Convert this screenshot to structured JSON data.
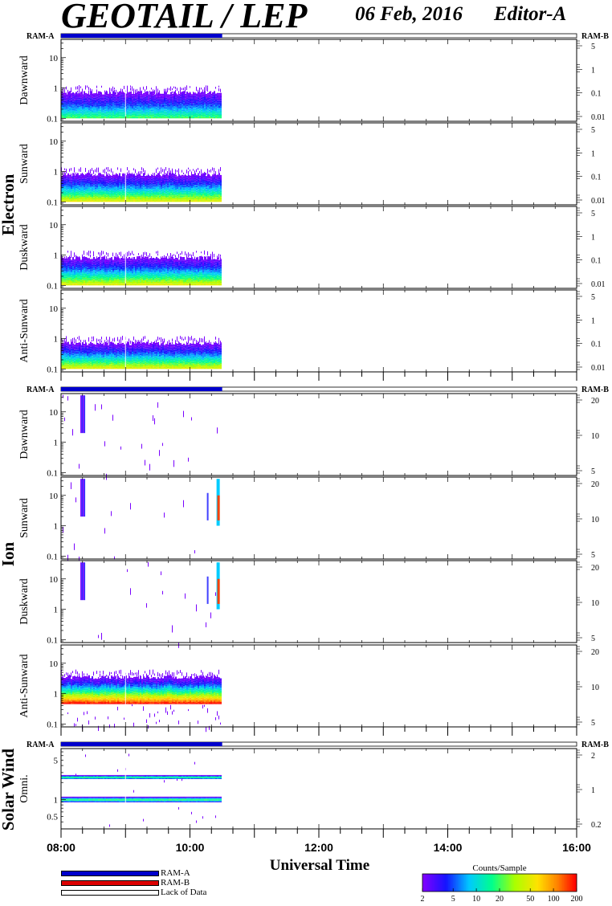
{
  "header": {
    "title": "GEOTAIL / LEP",
    "date": "06 Feb, 2016",
    "editor": "Editor-A"
  },
  "ram_labels": {
    "left": "RAM-A",
    "right": "RAM-B"
  },
  "xaxis": {
    "label": "Universal Time",
    "start_hour": 8,
    "end_hour": 16,
    "tick_labels": [
      "08:00",
      "10:00",
      "12:00",
      "14:00",
      "16:00"
    ],
    "minor_tick_minutes": 20
  },
  "legend": {
    "items": [
      {
        "label": "RAM-A",
        "color": "#0000cc"
      },
      {
        "label": "RAM-B",
        "color": "#dd0000"
      },
      {
        "label": "Lack of Data",
        "color": "#ffffff"
      }
    ]
  },
  "colorbar": {
    "title": "Counts/Sample",
    "tick_labels": [
      "2",
      "5",
      "10",
      "20",
      "50",
      "100",
      "200"
    ],
    "range": [
      2,
      200
    ],
    "scale": "log"
  },
  "data_coverage": {
    "ram_a_end_hour": 10.5,
    "data_end_hour": 10.5
  },
  "chart_data": [
    {
      "type": "heatmap",
      "group": "Electron",
      "panels": [
        {
          "ylabel": "Dawnward",
          "left_ticks": [
            "10",
            "1",
            "0.1"
          ],
          "right_ticks": [
            "5",
            "1",
            "0.1",
            "0.01"
          ],
          "ylim": [
            0.08,
            40
          ],
          "yscale": "log",
          "band": [
            0.1,
            0.7
          ],
          "peak_count": 20
        },
        {
          "ylabel": "Sunward",
          "left_ticks": [
            "10",
            "1",
            "0.1"
          ],
          "right_ticks": [
            "5",
            "1",
            "0.1",
            "0.01"
          ],
          "ylim": [
            0.08,
            40
          ],
          "yscale": "log",
          "band": [
            0.1,
            0.8
          ],
          "peak_count": 50
        },
        {
          "ylabel": "Duskward",
          "left_ticks": [
            "10",
            "1",
            "0.1"
          ],
          "right_ticks": [
            "5",
            "1",
            "0.1",
            "0.01"
          ],
          "ylim": [
            0.08,
            40
          ],
          "yscale": "log",
          "band": [
            0.1,
            0.8
          ],
          "peak_count": 50
        },
        {
          "ylabel": "Anti-Sunward",
          "left_ticks": [
            "10",
            "1",
            "0.1"
          ],
          "right_ticks": [
            "5",
            "1",
            "0.1",
            "0.01"
          ],
          "ylim": [
            0.08,
            40
          ],
          "yscale": "log",
          "band": [
            0.1,
            0.7
          ],
          "peak_count": 50
        }
      ]
    },
    {
      "type": "heatmap",
      "group": "Ion",
      "panels": [
        {
          "ylabel": "Dawnward",
          "left_ticks": [
            "10",
            "1",
            "0.1"
          ],
          "right_ticks": [
            "20",
            "10",
            "5"
          ],
          "ylim": [
            0.08,
            40
          ],
          "yscale": "log",
          "sparse": true,
          "burst_hour": 8.3
        },
        {
          "ylabel": "Sunward",
          "left_ticks": [
            "10",
            "1",
            "0.1"
          ],
          "right_ticks": [
            "20",
            "10",
            "5"
          ],
          "ylim": [
            0.08,
            40
          ],
          "yscale": "log",
          "sparse": true,
          "burst_hour": 8.3,
          "late_burst_hour": 10.45
        },
        {
          "ylabel": "Duskward",
          "left_ticks": [
            "10",
            "1",
            "0.1"
          ],
          "right_ticks": [
            "20",
            "10",
            "5"
          ],
          "ylim": [
            0.08,
            40
          ],
          "yscale": "log",
          "sparse": true,
          "burst_hour": 8.3,
          "late_burst_hour": 10.45
        },
        {
          "ylabel": "Anti-Sunward",
          "left_ticks": [
            "10",
            "1",
            "0.1"
          ],
          "right_ticks": [
            "20",
            "10",
            "5"
          ],
          "ylim": [
            0.08,
            40
          ],
          "yscale": "log",
          "band": [
            0.45,
            3.5
          ],
          "peak_count": 200
        }
      ]
    },
    {
      "type": "heatmap",
      "group": "Solar Wind",
      "panels": [
        {
          "ylabel": "Omni.",
          "left_ticks": [
            "5",
            "1",
            "0.5"
          ],
          "right_ticks": [
            "2",
            "1",
            "0.2"
          ],
          "ylim": [
            0.3,
            8
          ],
          "yscale": "log",
          "lines": [
            1.0,
            2.5
          ]
        }
      ]
    }
  ]
}
